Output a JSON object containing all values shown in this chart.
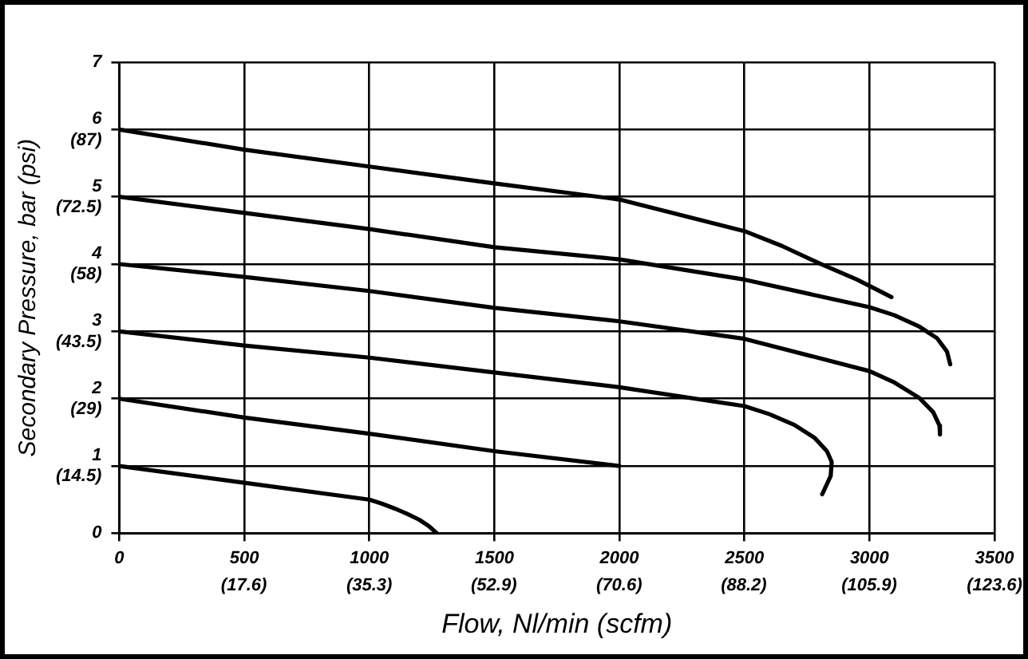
{
  "chart_data": {
    "type": "line",
    "xlabel": "Flow, Nl/min (scfm)",
    "ylabel": "Secondary Pressure, bar (psi)",
    "xlim": [
      0,
      3500
    ],
    "ylim": [
      0,
      7
    ],
    "xticks": [
      0,
      500,
      1000,
      1500,
      2000,
      2500,
      3000,
      3500
    ],
    "x2lim": [
      0,
      123.6
    ],
    "x2ticks": [
      {
        "value": 17.6,
        "label": "(17.6)"
      },
      {
        "value": 35.3,
        "label": "(35.3)"
      },
      {
        "value": 52.9,
        "label": "(52.9)"
      },
      {
        "value": 70.6,
        "label": "(70.6)"
      },
      {
        "value": 88.2,
        "label": "(88.2)"
      },
      {
        "value": 105.9,
        "label": "(105.9)"
      },
      {
        "value": 123.6,
        "label": "(123.6)"
      }
    ],
    "yticks": [
      0,
      {
        "value": 1,
        "label": "1\n(14.5)"
      },
      {
        "value": 2,
        "label": "2\n(29)"
      },
      {
        "value": 3,
        "label": "3\n(43.5)"
      },
      {
        "value": 4,
        "label": "4\n(58)"
      },
      {
        "value": 5,
        "label": "5\n(72.5)"
      },
      {
        "value": 6,
        "label": "6\n(87)"
      },
      7
    ],
    "grid": true,
    "legend": false,
    "marker": "none",
    "line_style": "solid",
    "series": [
      {
        "color": "#000000",
        "x": [
          0,
          500,
          1000,
          1050,
          1100,
          1150,
          1200,
          1240,
          1270
        ],
        "values": [
          1,
          0.75,
          0.5,
          0.44,
          0.37,
          0.29,
          0.2,
          0.1,
          0
        ]
      },
      {
        "color": "#000000",
        "x": [
          0,
          500,
          1000,
          1500,
          2000
        ],
        "values": [
          2,
          1.72,
          1.48,
          1.22,
          1
        ]
      },
      {
        "color": "#000000",
        "x": [
          0,
          500,
          1000,
          1500,
          2000,
          2500,
          2600,
          2700,
          2780,
          2830,
          2849,
          2845,
          2811
        ],
        "values": [
          3,
          2.79,
          2.61,
          2.39,
          2.17,
          1.89,
          1.77,
          1.61,
          1.42,
          1.22,
          1.06,
          0.85,
          0.58
        ]
      },
      {
        "color": "#000000",
        "x": [
          0,
          500,
          1000,
          1500,
          2000,
          2500,
          3000,
          3100,
          3200,
          3255,
          3280,
          3282
        ],
        "values": [
          4,
          3.81,
          3.6,
          3.35,
          3.15,
          2.89,
          2.41,
          2.24,
          2.01,
          1.8,
          1.6,
          1.47
        ]
      },
      {
        "color": "#000000",
        "x": [
          0,
          500,
          1000,
          1500,
          2000,
          2500,
          3000,
          3100,
          3200,
          3270,
          3310,
          3323
        ],
        "values": [
          5,
          4.76,
          4.52,
          4.25,
          4.07,
          3.77,
          3.36,
          3.24,
          3.07,
          2.9,
          2.7,
          2.51
        ]
      },
      {
        "color": "#000000",
        "x": [
          0,
          500,
          1000,
          1500,
          2000,
          2500,
          2650,
          2800,
          2950,
          3088
        ],
        "values": [
          6,
          5.7,
          5.45,
          5.2,
          4.96,
          4.49,
          4.27,
          4.01,
          3.77,
          3.51
        ]
      }
    ]
  }
}
